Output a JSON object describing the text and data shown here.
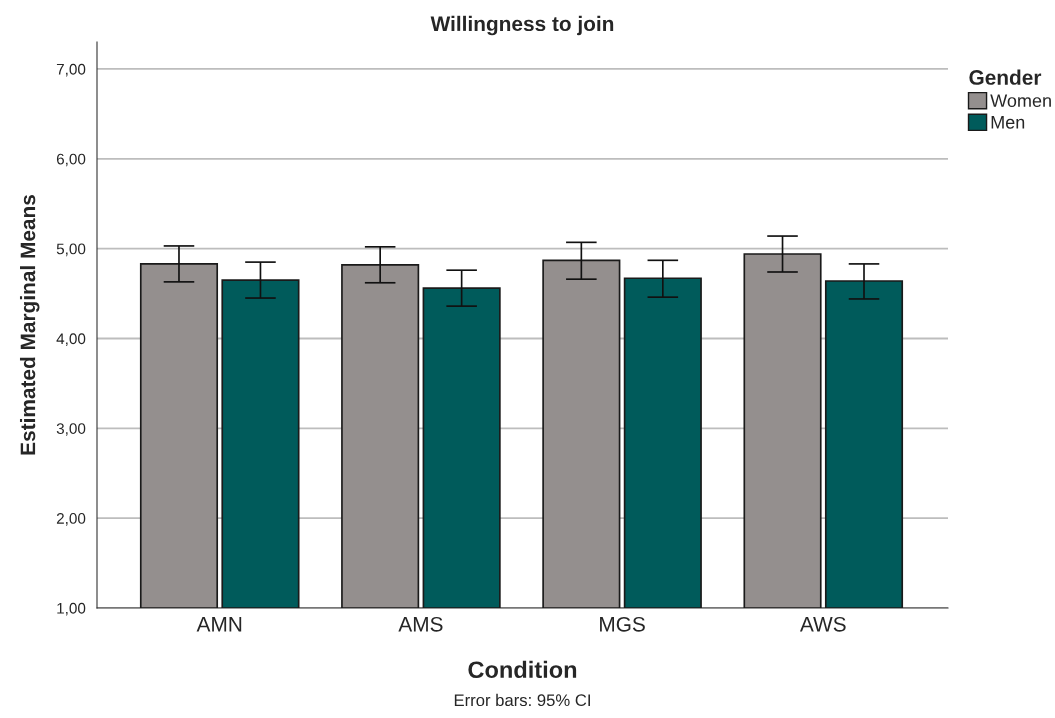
{
  "chart_data": {
    "type": "bar",
    "title": "Willingness to join",
    "xlabel": "Condition",
    "ylabel": "Estimated Marginal Means",
    "legend_title": "Gender",
    "categories": [
      "AMN",
      "AMS",
      "MGS",
      "AWS"
    ],
    "series": [
      {
        "name": "Women",
        "color": "#948f8e",
        "values": [
          4.83,
          4.82,
          4.87,
          4.94
        ],
        "errors": [
          [
            4.63,
            5.03
          ],
          [
            4.62,
            5.02
          ],
          [
            4.66,
            5.07
          ],
          [
            4.74,
            5.14
          ]
        ]
      },
      {
        "name": "Men",
        "color": "#005b5b",
        "values": [
          4.65,
          4.56,
          4.67,
          4.64
        ],
        "errors": [
          [
            4.45,
            4.85
          ],
          [
            4.36,
            4.76
          ],
          [
            4.46,
            4.87
          ],
          [
            4.44,
            4.83
          ]
        ]
      }
    ],
    "ylim": [
      1,
      7.3
    ],
    "yticks": [
      {
        "value": 1,
        "label": "1,00"
      },
      {
        "value": 2,
        "label": "2,00"
      },
      {
        "value": 3,
        "label": "3,00"
      },
      {
        "value": 4,
        "label": "4,00"
      },
      {
        "value": 5,
        "label": "5,00"
      },
      {
        "value": 6,
        "label": "6,00"
      },
      {
        "value": 7,
        "label": "7,00"
      }
    ],
    "grid": "y",
    "legend": "top right",
    "annotations": [
      "Error bars: 95% CI"
    ]
  }
}
